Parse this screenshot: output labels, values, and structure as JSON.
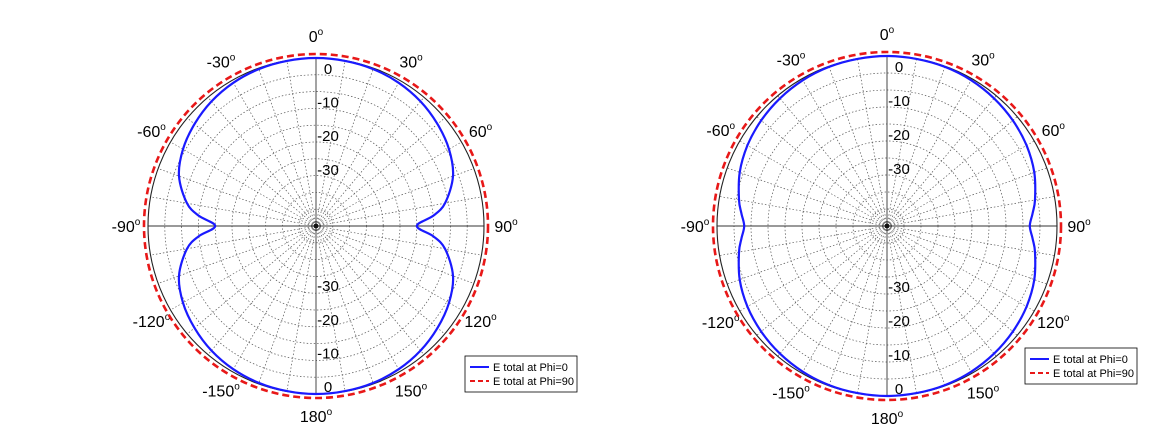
{
  "chart_data": [
    {
      "type": "polar-line",
      "theta_unit": "degrees",
      "r_unit": "dB",
      "r_range": [
        -50,
        0
      ],
      "angle_ticks": [
        "0",
        "30",
        "60",
        "90",
        "120",
        "150",
        "180",
        "-150",
        "-120",
        "-90",
        "-60",
        "-30"
      ],
      "angle_tick_values": [
        0,
        30,
        60,
        90,
        120,
        150,
        180,
        -150,
        -120,
        -90,
        -60,
        -30
      ],
      "degree_symbol": "o",
      "radial_tick_labels": [
        "0",
        "-10",
        "-20",
        "-30"
      ],
      "radial_tick_values": [
        0,
        -10,
        -20,
        -30
      ],
      "grid": true,
      "legend": "bottom-right",
      "series": [
        {
          "name": "E total at Phi=0",
          "color": "#1a1aff",
          "dash": "solid",
          "theta": [
            0,
            10,
            20,
            30,
            40,
            50,
            60,
            70,
            80,
            85,
            90,
            95,
            100,
            110,
            120,
            130,
            140,
            150,
            160,
            170,
            180
          ],
          "r": [
            0,
            -0.1,
            -0.3,
            -0.8,
            -1.6,
            -2.8,
            -4.3,
            -6.6,
            -11,
            -15,
            -20,
            -15,
            -11,
            -6.6,
            -4.3,
            -2.8,
            -1.6,
            -0.8,
            -0.3,
            -0.1,
            0
          ]
        },
        {
          "name": "E total at Phi=90",
          "color": "#e81818",
          "dash": "dashed",
          "theta": [
            0,
            30,
            60,
            90,
            120,
            150,
            180
          ],
          "r": [
            0,
            0,
            0,
            0,
            0,
            0,
            0
          ]
        }
      ]
    },
    {
      "type": "polar-line",
      "theta_unit": "degrees",
      "r_unit": "dB",
      "r_range": [
        -50,
        0
      ],
      "angle_ticks": [
        "0",
        "30",
        "60",
        "90",
        "120",
        "150",
        "180",
        "-150",
        "-120",
        "-90",
        "-60",
        "-30"
      ],
      "angle_tick_values": [
        0,
        30,
        60,
        90,
        120,
        150,
        180,
        -150,
        -120,
        -90,
        -60,
        -30
      ],
      "degree_symbol": "o",
      "radial_tick_labels": [
        "0",
        "-10",
        "-20",
        "-30"
      ],
      "radial_tick_values": [
        0,
        -10,
        -20,
        -30
      ],
      "grid": true,
      "legend": "bottom-right",
      "series": [
        {
          "name": "E total at Phi=0",
          "color": "#1a1aff",
          "dash": "solid",
          "theta": [
            0,
            10,
            20,
            30,
            40,
            50,
            60,
            70,
            80,
            85,
            90,
            95,
            100,
            110,
            120,
            130,
            140,
            150,
            160,
            170,
            180
          ],
          "r": [
            0,
            -0.1,
            -0.2,
            -0.5,
            -1.0,
            -1.7,
            -2.6,
            -3.9,
            -5.8,
            -7.0,
            -8.0,
            -7.0,
            -5.8,
            -3.9,
            -2.6,
            -1.7,
            -1.0,
            -0.5,
            -0.2,
            -0.1,
            0
          ]
        },
        {
          "name": "E total at Phi=90",
          "color": "#e81818",
          "dash": "dashed",
          "theta": [
            0,
            30,
            60,
            90,
            120,
            150,
            180
          ],
          "r": [
            0,
            0,
            0,
            0,
            0,
            0,
            0
          ]
        }
      ]
    }
  ]
}
